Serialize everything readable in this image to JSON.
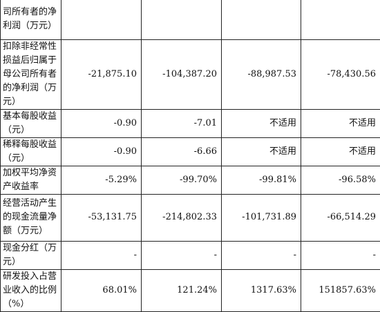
{
  "rows": [
    {
      "label": "司所有者的净利润（万元）",
      "values": [
        "",
        "",
        "",
        ""
      ]
    },
    {
      "label": "扣除非经常性损益后归属于母公司所有者的净利润（万元）",
      "values": [
        "-21,875.10",
        "-104,387.20",
        "-88,987.53",
        "-78,430.56"
      ]
    },
    {
      "label": "基本每股收益（元）",
      "values": [
        "-0.90",
        "-7.01",
        "不适用",
        "不适用"
      ]
    },
    {
      "label": "稀释每股收益（元）",
      "values": [
        "-0.90",
        "-6.66",
        "不适用",
        "不适用"
      ]
    },
    {
      "label": "加权平均净资产收益率",
      "values": [
        "-5.29%",
        "-99.70%",
        "-99.81%",
        "-96.58%"
      ]
    },
    {
      "label": "经营活动产生的现金流量净额（万元）",
      "values": [
        "-53,131.75",
        "-214,802.33",
        "-101,731.89",
        "-66,514.29"
      ]
    },
    {
      "label": "现金分红（万元）",
      "values": [
        "-",
        "-",
        "-",
        "-"
      ]
    },
    {
      "label": "研发投入占营业收入的比例（%）",
      "values": [
        "68.01%",
        "121.24%",
        "1317.63%",
        "151857.63%"
      ]
    }
  ]
}
